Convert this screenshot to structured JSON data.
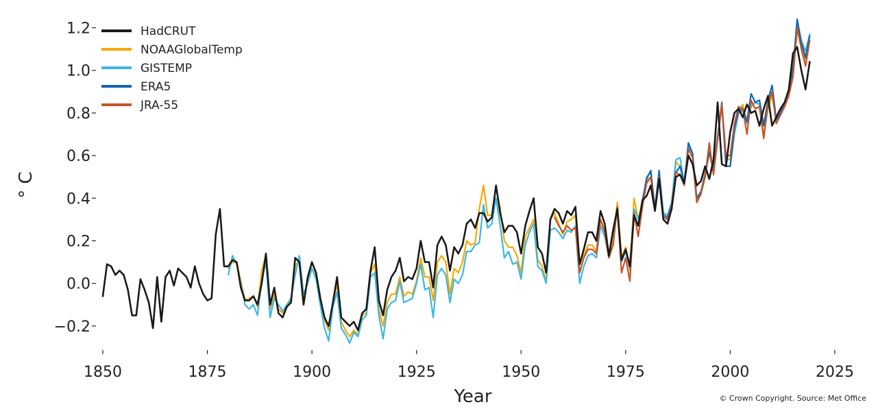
{
  "chart_data": {
    "type": "line",
    "title": "",
    "xlabel": "Year",
    "ylabel": "° C",
    "xlim": [
      1850,
      2025
    ],
    "ylim": [
      -0.3,
      1.25
    ],
    "xticks": [
      1850,
      1875,
      1900,
      1925,
      1950,
      1975,
      2000,
      2025
    ],
    "xtick_labels": [
      "1850",
      "1875",
      "1900",
      "1925",
      "1950",
      "1975",
      "2000",
      "2025"
    ],
    "yticks": [
      -0.2,
      0.0,
      0.2,
      0.4,
      0.6,
      0.8,
      1.0,
      1.2
    ],
    "ytick_labels": [
      "−0.2",
      "0.0",
      "0.2",
      "0.4",
      "0.6",
      "0.8",
      "1.0",
      "1.2"
    ],
    "grid": false,
    "legend_position": "top-left",
    "series": [
      {
        "name": "HadCRUT",
        "color": "#1a1a1a",
        "x": [
          1850,
          1851,
          1852,
          1853,
          1854,
          1855,
          1856,
          1857,
          1858,
          1859,
          1860,
          1861,
          1862,
          1863,
          1864,
          1865,
          1866,
          1867,
          1868,
          1869,
          1870,
          1871,
          1872,
          1873,
          1874,
          1875,
          1876,
          1877,
          1878,
          1879,
          1880,
          1881,
          1882,
          1883,
          1884,
          1885,
          1886,
          1887,
          1888,
          1889,
          1890,
          1891,
          1892,
          1893,
          1894,
          1895,
          1896,
          1897,
          1898,
          1899,
          1900,
          1901,
          1902,
          1903,
          1904,
          1905,
          1906,
          1907,
          1908,
          1909,
          1910,
          1911,
          1912,
          1913,
          1914,
          1915,
          1916,
          1917,
          1918,
          1919,
          1920,
          1921,
          1922,
          1923,
          1924,
          1925,
          1926,
          1927,
          1928,
          1929,
          1930,
          1931,
          1932,
          1933,
          1934,
          1935,
          1936,
          1937,
          1938,
          1939,
          1940,
          1941,
          1942,
          1943,
          1944,
          1945,
          1946,
          1947,
          1948,
          1949,
          1950,
          1951,
          1952,
          1953,
          1954,
          1955,
          1956,
          1957,
          1958,
          1959,
          1960,
          1961,
          1962,
          1963,
          1964,
          1965,
          1966,
          1967,
          1968,
          1969,
          1970,
          1971,
          1972,
          1973,
          1974,
          1975,
          1976,
          1977,
          1978,
          1979,
          1980,
          1981,
          1982,
          1983,
          1984,
          1985,
          1986,
          1987,
          1988,
          1989,
          1990,
          1991,
          1992,
          1993,
          1994,
          1995,
          1996,
          1997,
          1998,
          1999,
          2000,
          2001,
          2002,
          2003,
          2004,
          2005,
          2006,
          2007,
          2008,
          2009,
          2010,
          2011,
          2012,
          2013,
          2014,
          2015,
          2016,
          2017,
          2018,
          2019
        ],
        "y": [
          -0.06,
          0.09,
          0.08,
          0.04,
          0.06,
          0.04,
          -0.03,
          -0.15,
          -0.15,
          0.02,
          -0.03,
          -0.09,
          -0.21,
          0.03,
          -0.18,
          0.03,
          0.06,
          -0.01,
          0.07,
          0.05,
          0.03,
          -0.02,
          0.08,
          0.0,
          -0.05,
          -0.08,
          -0.07,
          0.23,
          0.35,
          0.08,
          0.08,
          0.11,
          0.1,
          -0.02,
          -0.08,
          -0.08,
          -0.06,
          -0.1,
          0.0,
          0.14,
          -0.1,
          -0.02,
          -0.14,
          -0.16,
          -0.11,
          -0.09,
          0.12,
          0.1,
          -0.1,
          0.03,
          0.1,
          0.05,
          -0.07,
          -0.16,
          -0.2,
          -0.09,
          0.03,
          -0.16,
          -0.18,
          -0.2,
          -0.18,
          -0.22,
          -0.14,
          -0.12,
          0.06,
          0.17,
          -0.08,
          -0.15,
          -0.03,
          0.03,
          0.06,
          0.12,
          0.01,
          0.03,
          0.02,
          0.07,
          0.2,
          0.1,
          0.1,
          -0.02,
          0.18,
          0.22,
          0.18,
          0.06,
          0.17,
          0.14,
          0.18,
          0.28,
          0.3,
          0.26,
          0.33,
          0.33,
          0.29,
          0.31,
          0.46,
          0.33,
          0.24,
          0.27,
          0.27,
          0.24,
          0.14,
          0.27,
          0.34,
          0.4,
          0.17,
          0.14,
          0.05,
          0.3,
          0.35,
          0.33,
          0.28,
          0.34,
          0.32,
          0.36,
          0.09,
          0.16,
          0.24,
          0.24,
          0.2,
          0.34,
          0.28,
          0.13,
          0.25,
          0.35,
          0.11,
          0.16,
          0.08,
          0.32,
          0.27,
          0.39,
          0.41,
          0.46,
          0.34,
          0.49,
          0.3,
          0.28,
          0.35,
          0.5,
          0.51,
          0.47,
          0.6,
          0.56,
          0.46,
          0.48,
          0.55,
          0.49,
          0.58,
          0.85,
          0.56,
          0.55,
          0.71,
          0.8,
          0.82,
          0.78,
          0.84,
          0.8,
          0.81,
          0.74,
          0.82,
          0.88,
          0.74,
          0.78,
          0.82,
          0.85,
          0.91,
          1.08,
          1.11,
          1.0,
          0.91,
          1.04
        ]
      },
      {
        "name": "NOAAGlobalTemp",
        "color": "#f5a800",
        "x": [
          1880,
          1881,
          1882,
          1883,
          1884,
          1885,
          1886,
          1887,
          1888,
          1889,
          1890,
          1891,
          1892,
          1893,
          1894,
          1895,
          1896,
          1897,
          1898,
          1899,
          1900,
          1901,
          1902,
          1903,
          1904,
          1905,
          1906,
          1907,
          1908,
          1909,
          1910,
          1911,
          1912,
          1913,
          1914,
          1915,
          1916,
          1917,
          1918,
          1919,
          1920,
          1921,
          1922,
          1923,
          1924,
          1925,
          1926,
          1927,
          1928,
          1929,
          1930,
          1931,
          1932,
          1933,
          1934,
          1935,
          1936,
          1937,
          1938,
          1939,
          1940,
          1941,
          1942,
          1943,
          1944,
          1945,
          1946,
          1947,
          1948,
          1949,
          1950,
          1951,
          1952,
          1953,
          1954,
          1955,
          1956,
          1957,
          1958,
          1959,
          1960,
          1961,
          1962,
          1963,
          1964,
          1965,
          1966,
          1967,
          1968,
          1969,
          1970,
          1971,
          1972,
          1973,
          1974,
          1975,
          1976,
          1977,
          1978,
          1979,
          1980,
          1981,
          1982,
          1983,
          1984,
          1985,
          1986,
          1987,
          1988,
          1989,
          1990,
          1991,
          1992,
          1993,
          1994,
          1995,
          1996,
          1997,
          1998,
          1999,
          2000,
          2001,
          2002,
          2003,
          2004,
          2005,
          2006,
          2007,
          2008,
          2009,
          2010,
          2011,
          2012,
          2013,
          2014,
          2015,
          2016,
          2017,
          2018,
          2019
        ],
        "y": [
          0.07,
          0.1,
          0.1,
          0.01,
          -0.08,
          -0.07,
          -0.06,
          -0.11,
          0.06,
          0.13,
          -0.12,
          -0.05,
          -0.12,
          -0.14,
          -0.1,
          -0.08,
          0.08,
          0.11,
          -0.08,
          0.02,
          0.1,
          0.04,
          -0.06,
          -0.17,
          -0.22,
          -0.1,
          0.0,
          -0.18,
          -0.22,
          -0.25,
          -0.22,
          -0.24,
          -0.15,
          -0.14,
          0.05,
          0.09,
          -0.12,
          -0.2,
          -0.09,
          -0.05,
          -0.05,
          0.03,
          -0.06,
          -0.04,
          -0.05,
          0.01,
          0.12,
          0.03,
          0.03,
          -0.08,
          0.1,
          0.13,
          0.1,
          -0.05,
          0.07,
          0.05,
          0.1,
          0.2,
          0.18,
          0.19,
          0.35,
          0.46,
          0.32,
          0.32,
          0.45,
          0.35,
          0.2,
          0.17,
          0.17,
          0.13,
          0.05,
          0.22,
          0.26,
          0.3,
          0.11,
          0.08,
          0.01,
          0.3,
          0.33,
          0.28,
          0.23,
          0.29,
          0.3,
          0.32,
          0.05,
          0.13,
          0.18,
          0.18,
          0.15,
          0.3,
          0.25,
          0.12,
          0.2,
          0.38,
          0.12,
          0.17,
          0.06,
          0.4,
          0.3,
          0.38,
          0.48,
          0.5,
          0.35,
          0.52,
          0.33,
          0.32,
          0.35,
          0.57,
          0.55,
          0.48,
          0.63,
          0.59,
          0.4,
          0.43,
          0.52,
          0.61,
          0.52,
          0.68,
          0.83,
          0.59,
          0.58,
          0.72,
          0.8,
          0.84,
          0.75,
          0.85,
          0.82,
          0.83,
          0.7,
          0.82,
          0.88,
          0.77,
          0.8,
          0.84,
          0.9,
          0.98,
          1.19,
          1.12,
          1.05,
          1.14
        ]
      },
      {
        "name": "GISTEMP",
        "color": "#3cb6e3",
        "x": [
          1880,
          1881,
          1882,
          1883,
          1884,
          1885,
          1886,
          1887,
          1888,
          1889,
          1890,
          1891,
          1892,
          1893,
          1894,
          1895,
          1896,
          1897,
          1898,
          1899,
          1900,
          1901,
          1902,
          1903,
          1904,
          1905,
          1906,
          1907,
          1908,
          1909,
          1910,
          1911,
          1912,
          1913,
          1914,
          1915,
          1916,
          1917,
          1918,
          1919,
          1920,
          1921,
          1922,
          1923,
          1924,
          1925,
          1926,
          1927,
          1928,
          1929,
          1930,
          1931,
          1932,
          1933,
          1934,
          1935,
          1936,
          1937,
          1938,
          1939,
          1940,
          1941,
          1942,
          1943,
          1944,
          1945,
          1946,
          1947,
          1948,
          1949,
          1950,
          1951,
          1952,
          1953,
          1954,
          1955,
          1956,
          1957,
          1958,
          1959,
          1960,
          1961,
          1962,
          1963,
          1964,
          1965,
          1966,
          1967,
          1968,
          1969,
          1970,
          1971,
          1972,
          1973,
          1974,
          1975,
          1976,
          1977,
          1978,
          1979,
          1980,
          1981,
          1982,
          1983,
          1984,
          1985,
          1986,
          1987,
          1988,
          1989,
          1990,
          1991,
          1992,
          1993,
          1994,
          1995,
          1996,
          1997,
          1998,
          1999,
          2000,
          2001,
          2002,
          2003,
          2004,
          2005,
          2006,
          2007,
          2008,
          2009,
          2010,
          2011,
          2012,
          2013,
          2014,
          2015,
          2016,
          2017,
          2018,
          2019
        ],
        "y": [
          0.04,
          0.13,
          0.09,
          0.0,
          -0.1,
          -0.12,
          -0.1,
          -0.15,
          0.02,
          0.1,
          -0.16,
          -0.07,
          -0.1,
          -0.13,
          -0.1,
          -0.07,
          0.04,
          0.13,
          -0.05,
          0.0,
          0.07,
          0.02,
          -0.1,
          -0.21,
          -0.27,
          -0.11,
          -0.04,
          -0.21,
          -0.24,
          -0.28,
          -0.23,
          -0.25,
          -0.17,
          -0.15,
          0.03,
          0.05,
          -0.15,
          -0.26,
          -0.12,
          -0.09,
          -0.08,
          0.01,
          -0.09,
          -0.08,
          -0.07,
          0.0,
          0.09,
          -0.03,
          -0.02,
          -0.16,
          0.04,
          0.07,
          0.04,
          -0.09,
          0.02,
          0.0,
          0.04,
          0.15,
          0.15,
          0.18,
          0.19,
          0.37,
          0.26,
          0.28,
          0.4,
          0.27,
          0.12,
          0.15,
          0.09,
          0.1,
          0.02,
          0.18,
          0.24,
          0.28,
          0.08,
          0.06,
          0.0,
          0.25,
          0.26,
          0.24,
          0.21,
          0.25,
          0.24,
          0.27,
          0.0,
          0.08,
          0.13,
          0.14,
          0.12,
          0.27,
          0.22,
          0.12,
          0.18,
          0.36,
          0.1,
          0.15,
          0.07,
          0.35,
          0.3,
          0.37,
          0.5,
          0.52,
          0.36,
          0.52,
          0.33,
          0.32,
          0.38,
          0.58,
          0.59,
          0.47,
          0.64,
          0.61,
          0.38,
          0.43,
          0.5,
          0.62,
          0.54,
          0.7,
          0.84,
          0.55,
          0.55,
          0.7,
          0.8,
          0.81,
          0.75,
          0.83,
          0.85,
          0.84,
          0.75,
          0.84,
          0.9,
          0.76,
          0.8,
          0.84,
          0.9,
          1.0,
          1.23,
          1.14,
          1.09,
          1.17
        ]
      },
      {
        "name": "ERA5",
        "color": "#0f67b1",
        "x": [
          1979,
          1980,
          1981,
          1982,
          1983,
          1984,
          1985,
          1986,
          1987,
          1988,
          1989,
          1990,
          1991,
          1992,
          1993,
          1994,
          1995,
          1996,
          1997,
          1998,
          1999,
          2000,
          2001,
          2002,
          2003,
          2004,
          2005,
          2006,
          2007,
          2008,
          2009,
          2010,
          2011,
          2012,
          2013,
          2014,
          2015,
          2016,
          2017,
          2018,
          2019
        ],
        "y": [
          0.39,
          0.49,
          0.53,
          0.35,
          0.53,
          0.32,
          0.31,
          0.37,
          0.52,
          0.55,
          0.47,
          0.66,
          0.61,
          0.4,
          0.43,
          0.51,
          0.62,
          0.53,
          0.68,
          0.85,
          0.55,
          0.55,
          0.73,
          0.81,
          0.82,
          0.76,
          0.89,
          0.85,
          0.86,
          0.74,
          0.86,
          0.93,
          0.77,
          0.8,
          0.85,
          0.91,
          1.01,
          1.24,
          1.13,
          1.06,
          1.16
        ]
      },
      {
        "name": "JRA-55",
        "color": "#c4542a",
        "x": [
          1958,
          1959,
          1960,
          1961,
          1962,
          1963,
          1964,
          1965,
          1966,
          1967,
          1968,
          1969,
          1970,
          1971,
          1972,
          1973,
          1974,
          1975,
          1976,
          1977,
          1978,
          1979,
          1980,
          1981,
          1982,
          1983,
          1984,
          1985,
          1986,
          1987,
          1988,
          1989,
          1990,
          1991,
          1992,
          1993,
          1994,
          1995,
          1996,
          1997,
          1998,
          1999,
          2000,
          2001,
          2002,
          2003,
          2004,
          2005,
          2006,
          2007,
          2008,
          2009,
          2010,
          2011,
          2012,
          2013,
          2014,
          2015,
          2016,
          2017,
          2018,
          2019
        ],
        "y": [
          0.31,
          0.27,
          0.24,
          0.27,
          0.25,
          0.26,
          0.05,
          0.12,
          0.16,
          0.16,
          0.14,
          0.3,
          0.24,
          0.12,
          0.18,
          0.36,
          0.05,
          0.12,
          0.01,
          0.33,
          0.22,
          0.36,
          0.47,
          0.5,
          0.34,
          0.5,
          0.31,
          0.3,
          0.36,
          0.52,
          0.51,
          0.46,
          0.63,
          0.59,
          0.38,
          0.42,
          0.5,
          0.66,
          0.51,
          0.68,
          0.84,
          0.6,
          0.6,
          0.75,
          0.83,
          0.82,
          0.7,
          0.86,
          0.82,
          0.83,
          0.68,
          0.84,
          0.9,
          0.75,
          0.79,
          0.83,
          0.88,
          0.97,
          1.2,
          1.1,
          1.02,
          1.14
        ]
      }
    ]
  },
  "credit": "© Crown Copyright. Source: Met Office"
}
